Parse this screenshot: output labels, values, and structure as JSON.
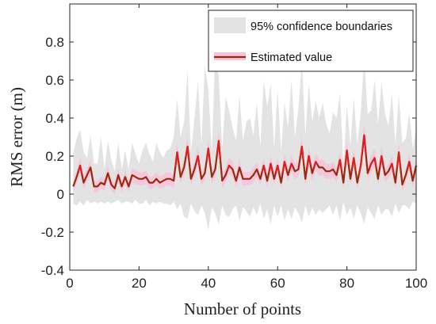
{
  "chart_data": {
    "type": "line",
    "title": "",
    "xlabel": "Number of points",
    "ylabel": "RMS error (m)",
    "xlim": [
      0,
      100
    ],
    "ylim": [
      -0.4,
      1.0
    ],
    "xticks": [
      0,
      20,
      40,
      60,
      80,
      100
    ],
    "xtick_labels": [
      "0",
      "20",
      "40",
      "60",
      "80",
      "100"
    ],
    "yticks": [
      -0.4,
      -0.2,
      0,
      0.2,
      0.4,
      0.6,
      0.8
    ],
    "ytick_labels": [
      "-0.4",
      "-0.2",
      "0",
      "0.2",
      "0.4",
      "0.6",
      "0.8"
    ],
    "grid": false,
    "legend_position": "top-right",
    "legend": {
      "band_label": "95% confidence boundaries",
      "line_label": "Estimated value"
    },
    "colors": {
      "band": "#e3e3e3",
      "inner_band": "#f7c2dc",
      "line": "#9a2a0c",
      "line_highlight": "#e01e1e"
    },
    "x": [
      1,
      2,
      3,
      4,
      5,
      6,
      7,
      8,
      9,
      10,
      11,
      12,
      13,
      14,
      15,
      16,
      17,
      18,
      19,
      20,
      21,
      22,
      23,
      24,
      25,
      26,
      27,
      28,
      29,
      30,
      31,
      32,
      33,
      34,
      35,
      36,
      37,
      38,
      39,
      40,
      41,
      42,
      43,
      44,
      45,
      46,
      47,
      48,
      49,
      50,
      51,
      52,
      53,
      54,
      55,
      56,
      57,
      58,
      59,
      60,
      61,
      62,
      63,
      64,
      65,
      66,
      67,
      68,
      69,
      70,
      71,
      72,
      73,
      74,
      75,
      76,
      77,
      78,
      79,
      80,
      81,
      82,
      83,
      84,
      85,
      86,
      87,
      88,
      89,
      90,
      91,
      92,
      93,
      94,
      95,
      96,
      97,
      98,
      99,
      100
    ],
    "series": [
      {
        "name": "Estimated value",
        "values": [
          0.04,
          0.09,
          0.15,
          0.06,
          0.1,
          0.14,
          0.04,
          0.04,
          0.06,
          0.05,
          0.11,
          0.05,
          0.03,
          0.1,
          0.04,
          0.09,
          0.04,
          0.1,
          0.09,
          0.08,
          0.08,
          0.09,
          0.06,
          0.06,
          0.08,
          0.06,
          0.07,
          0.08,
          0.08,
          0.07,
          0.22,
          0.09,
          0.14,
          0.25,
          0.08,
          0.13,
          0.2,
          0.08,
          0.11,
          0.24,
          0.09,
          0.13,
          0.28,
          0.07,
          0.1,
          0.15,
          0.13,
          0.07,
          0.14,
          0.08,
          0.08,
          0.08,
          0.1,
          0.13,
          0.08,
          0.15,
          0.07,
          0.16,
          0.08,
          0.15,
          0.06,
          0.17,
          0.1,
          0.16,
          0.12,
          0.13,
          0.25,
          0.08,
          0.2,
          0.11,
          0.17,
          0.14,
          0.14,
          0.12,
          0.12,
          0.13,
          0.1,
          0.18,
          0.06,
          0.23,
          0.08,
          0.19,
          0.06,
          0.15,
          0.31,
          0.11,
          0.16,
          0.19,
          0.08,
          0.2,
          0.1,
          0.12,
          0.16,
          0.06,
          0.22,
          0.05,
          0.1,
          0.17,
          0.07,
          0.15
        ]
      },
      {
        "name": "95% confidence boundaries (upper)",
        "values": [
          0.22,
          0.29,
          0.34,
          0.22,
          0.19,
          0.31,
          0.16,
          0.16,
          0.3,
          0.13,
          0.28,
          0.18,
          0.12,
          0.27,
          0.13,
          0.23,
          0.13,
          0.27,
          0.21,
          0.16,
          0.23,
          0.27,
          0.21,
          0.17,
          0.27,
          0.22,
          0.19,
          0.23,
          0.24,
          0.3,
          0.5,
          0.3,
          0.38,
          0.65,
          0.22,
          0.4,
          0.59,
          0.26,
          0.68,
          0.55,
          0.22,
          0.75,
          0.62,
          0.24,
          0.51,
          0.44,
          0.35,
          0.28,
          0.52,
          0.28,
          0.38,
          0.4,
          0.31,
          0.48,
          0.25,
          0.6,
          0.46,
          0.58,
          0.24,
          0.55,
          0.22,
          0.48,
          0.35,
          0.6,
          0.3,
          0.45,
          0.7,
          0.31,
          0.58,
          0.38,
          0.49,
          0.4,
          0.48,
          0.37,
          0.32,
          0.43,
          0.4,
          0.53,
          0.16,
          0.47,
          0.26,
          0.51,
          0.26,
          0.43,
          0.72,
          0.42,
          0.44,
          0.6,
          0.37,
          0.59,
          0.42,
          0.36,
          0.53,
          0.26,
          0.52,
          0.27,
          0.29,
          0.43,
          0.24,
          0.34
        ]
      },
      {
        "name": "95% confidence boundaries (lower)",
        "values": [
          -0.05,
          -0.06,
          -0.04,
          -0.06,
          -0.03,
          -0.05,
          -0.04,
          -0.05,
          -0.04,
          -0.05,
          -0.04,
          -0.05,
          -0.04,
          -0.03,
          -0.05,
          -0.04,
          -0.04,
          -0.05,
          -0.03,
          -0.05,
          -0.05,
          -0.03,
          -0.06,
          -0.04,
          -0.05,
          -0.04,
          -0.05,
          -0.05,
          -0.06,
          -0.04,
          -0.08,
          -0.05,
          -0.12,
          -0.13,
          -0.05,
          -0.09,
          -0.11,
          -0.06,
          -0.1,
          -0.19,
          -0.07,
          -0.1,
          -0.16,
          -0.06,
          -0.11,
          -0.12,
          -0.08,
          -0.06,
          -0.14,
          -0.07,
          -0.09,
          -0.12,
          -0.07,
          -0.11,
          -0.05,
          -0.13,
          -0.08,
          -0.16,
          -0.06,
          -0.12,
          -0.06,
          -0.14,
          -0.08,
          -0.13,
          -0.07,
          -0.1,
          -0.15,
          -0.06,
          -0.12,
          -0.07,
          -0.11,
          -0.08,
          -0.1,
          -0.08,
          -0.06,
          -0.11,
          -0.06,
          -0.14,
          -0.04,
          -0.11,
          -0.07,
          -0.13,
          -0.06,
          -0.1,
          -0.16,
          -0.07,
          -0.1,
          -0.13,
          -0.06,
          -0.11,
          -0.08,
          -0.08,
          -0.12,
          -0.05,
          -0.1,
          -0.06,
          -0.06,
          -0.08,
          -0.04,
          -0.05
        ]
      }
    ]
  }
}
